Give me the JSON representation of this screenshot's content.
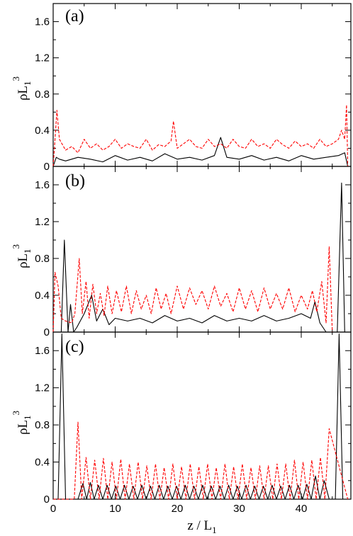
{
  "chart_data": [
    {
      "type": "line",
      "panel_label": "(a)",
      "ylabel": {
        "base": "ρL",
        "sub": "1",
        "sup": "3"
      },
      "xlim": [
        0,
        48
      ],
      "ylim": [
        0,
        1.8
      ],
      "yticks": [
        0,
        0.4,
        0.8,
        1.2,
        1.6
      ],
      "ytick_labels": [
        "0",
        "0.4",
        "0.8",
        "1.2",
        "1.6"
      ],
      "xticks": [
        0,
        10,
        20,
        30,
        40
      ],
      "show_xtick_labels": false,
      "series": [
        {
          "color": "#000000",
          "style": "solid",
          "x": [
            0,
            0.5,
            1,
            2,
            4,
            6,
            8,
            10,
            12,
            14,
            16,
            18,
            20,
            22,
            24,
            26,
            27,
            28,
            30,
            32,
            34,
            36,
            38,
            40,
            42,
            44,
            46,
            47,
            47.5
          ],
          "y": [
            0,
            0.1,
            0.08,
            0.06,
            0.1,
            0.08,
            0.05,
            0.12,
            0.07,
            0.1,
            0.06,
            0.14,
            0.08,
            0.1,
            0.07,
            0.12,
            0.32,
            0.1,
            0.08,
            0.12,
            0.07,
            0.1,
            0.06,
            0.12,
            0.08,
            0.1,
            0.12,
            0.15,
            0
          ]
        },
        {
          "color": "#ff0000",
          "style": "dashed",
          "x": [
            0,
            0.3,
            0.6,
            1,
            2,
            3,
            4,
            5,
            6,
            7,
            8,
            9,
            10,
            11,
            12,
            13,
            14,
            15,
            16,
            17,
            18,
            19,
            19.4,
            20,
            21,
            22,
            23,
            24,
            25,
            26,
            27,
            28,
            29,
            30,
            31,
            32,
            33,
            34,
            35,
            36,
            37,
            38,
            39,
            40,
            41,
            42,
            43,
            44,
            45,
            46,
            46.5,
            47,
            47.3,
            47.5
          ],
          "y": [
            0,
            0.3,
            0.62,
            0.3,
            0.18,
            0.22,
            0.15,
            0.3,
            0.2,
            0.25,
            0.18,
            0.22,
            0.3,
            0.2,
            0.25,
            0.22,
            0.2,
            0.3,
            0.18,
            0.24,
            0.22,
            0.28,
            0.5,
            0.2,
            0.25,
            0.3,
            0.22,
            0.2,
            0.3,
            0.22,
            0.25,
            0.2,
            0.3,
            0.22,
            0.2,
            0.3,
            0.22,
            0.25,
            0.2,
            0.3,
            0.24,
            0.2,
            0.28,
            0.22,
            0.25,
            0.2,
            0.3,
            0.22,
            0.25,
            0.3,
            0.4,
            0.3,
            0.68,
            0
          ]
        }
      ]
    },
    {
      "type": "line",
      "panel_label": "(b)",
      "ylabel": {
        "base": "ρL",
        "sub": "1",
        "sup": "3"
      },
      "xlim": [
        0,
        48
      ],
      "ylim": [
        0,
        1.8
      ],
      "yticks": [
        0,
        0.4,
        0.8,
        1.2,
        1.6
      ],
      "ytick_labels": [
        "0",
        "0.4",
        "0.8",
        "1.2",
        "1.6"
      ],
      "xticks": [
        0,
        10,
        20,
        30,
        40
      ],
      "show_xtick_labels": false,
      "series": [
        {
          "color": "#000000",
          "style": "solid",
          "x": [
            0,
            1.3,
            1.8,
            2.4,
            2.8,
            3.3,
            3.8,
            5,
            6.2,
            7,
            8,
            9,
            10,
            12,
            14,
            16,
            18,
            20,
            22,
            24,
            26,
            28,
            30,
            32,
            34,
            36,
            38,
            40,
            41.5,
            42.2,
            43,
            44,
            45,
            45.8,
            46.5,
            47,
            47.5
          ],
          "y": [
            0,
            0,
            1.0,
            0,
            0.3,
            0,
            0.05,
            0.2,
            0.4,
            0.12,
            0.25,
            0.08,
            0.15,
            0.12,
            0.15,
            0.1,
            0.18,
            0.12,
            0.15,
            0.1,
            0.18,
            0.12,
            0.15,
            0.12,
            0.18,
            0.12,
            0.15,
            0.2,
            0.15,
            0.33,
            0.1,
            0,
            0,
            0,
            1.62,
            0,
            0
          ]
        },
        {
          "color": "#ff0000",
          "style": "dashed",
          "x": [
            0,
            0.3,
            0.8,
            1.3,
            2,
            3,
            3.5,
            4.2,
            4.7,
            5.3,
            5.8,
            6.4,
            7,
            7.6,
            8.2,
            8.8,
            9.5,
            10.2,
            11,
            11.8,
            12.6,
            13.4,
            14.2,
            15,
            15.8,
            16.6,
            17.4,
            18.2,
            19,
            20,
            21,
            22,
            23,
            24,
            25,
            26,
            27,
            28,
            29,
            30,
            31,
            32,
            33,
            34,
            35,
            36,
            37,
            38,
            39,
            40,
            41,
            41.8,
            42.5,
            43.3,
            44,
            44.5,
            45,
            46,
            47.5
          ],
          "y": [
            0,
            0.65,
            0.5,
            0.15,
            0.12,
            0.1,
            0.2,
            0.8,
            0.2,
            0.55,
            0.15,
            0.52,
            0.2,
            0.42,
            0.18,
            0.5,
            0.2,
            0.45,
            0.22,
            0.5,
            0.2,
            0.45,
            0.25,
            0.4,
            0.2,
            0.48,
            0.25,
            0.42,
            0.2,
            0.5,
            0.25,
            0.48,
            0.3,
            0.45,
            0.25,
            0.5,
            0.28,
            0.42,
            0.22,
            0.48,
            0.25,
            0.45,
            0.22,
            0.48,
            0.25,
            0.42,
            0.25,
            0.48,
            0.22,
            0.4,
            0.25,
            0.45,
            0.22,
            0.55,
            0.1,
            0.93,
            0,
            0,
            0
          ]
        }
      ]
    },
    {
      "type": "line",
      "panel_label": "(c)",
      "ylabel": {
        "base": "ρL",
        "sub": "1",
        "sup": "3"
      },
      "xlabel": {
        "base": "z / L",
        "sub": "1"
      },
      "xlim": [
        0,
        48
      ],
      "ylim": [
        0,
        1.8
      ],
      "yticks": [
        0,
        0.4,
        0.8,
        1.2,
        1.6
      ],
      "ytick_labels": [
        "0",
        "0.4",
        "0.8",
        "1.2",
        "1.6"
      ],
      "xticks": [
        0,
        10,
        20,
        30,
        40
      ],
      "xtick_labels": [
        "0",
        "10",
        "20",
        "30",
        "40"
      ],
      "show_xtick_labels": true,
      "series": [
        {
          "color": "#000000",
          "style": "solid",
          "x": [
            0,
            0.8,
            1.4,
            2.0,
            3.0,
            4.0,
            4.8,
            5.4,
            6.0,
            6.6,
            7.3,
            8.0,
            8.7,
            9.4,
            10.1,
            10.8,
            11.5,
            12.2,
            12.9,
            13.6,
            14.3,
            15.0,
            15.7,
            16.4,
            17.1,
            17.8,
            18.5,
            19.2,
            19.9,
            20.6,
            21.3,
            22.0,
            22.7,
            23.4,
            24.1,
            24.8,
            25.5,
            26.2,
            26.9,
            27.6,
            28.3,
            29.0,
            29.7,
            30.4,
            31.1,
            31.8,
            32.5,
            33.2,
            33.9,
            34.6,
            35.3,
            36.0,
            36.7,
            37.4,
            38.1,
            38.8,
            39.5,
            40.2,
            40.9,
            41.6,
            42.3,
            43.0,
            43.7,
            44.5,
            45.5,
            46.1,
            46.7,
            47.5
          ],
          "y": [
            0,
            0,
            1.78,
            0,
            0,
            0,
            0.17,
            0,
            0.18,
            0,
            0.15,
            0,
            0.15,
            0,
            0.14,
            0,
            0.15,
            0,
            0.14,
            0,
            0.15,
            0,
            0.14,
            0,
            0.15,
            0,
            0.14,
            0,
            0.14,
            0,
            0.15,
            0,
            0.14,
            0,
            0.15,
            0,
            0.14,
            0,
            0.14,
            0,
            0.15,
            0,
            0.14,
            0,
            0.15,
            0,
            0.14,
            0,
            0.14,
            0,
            0.15,
            0,
            0.14,
            0,
            0.15,
            0,
            0.15,
            0,
            0.16,
            0,
            0.25,
            0,
            0.2,
            0,
            0,
            1.78,
            0,
            0
          ]
        },
        {
          "color": "#ff0000",
          "style": "dashed",
          "x": [
            0,
            3.4,
            4.0,
            4.6,
            5.3,
            6.0,
            6.7,
            7.4,
            8.1,
            8.8,
            9.5,
            10.2,
            10.9,
            11.6,
            12.3,
            13.0,
            13.7,
            14.4,
            15.1,
            15.8,
            16.5,
            17.2,
            17.9,
            18.6,
            19.3,
            20.0,
            20.7,
            21.4,
            22.1,
            22.8,
            23.5,
            24.2,
            24.9,
            25.6,
            26.3,
            27.0,
            27.7,
            28.4,
            29.1,
            29.8,
            30.5,
            31.2,
            31.9,
            32.6,
            33.3,
            34.0,
            34.7,
            35.4,
            36.1,
            36.8,
            37.5,
            38.2,
            38.9,
            39.6,
            40.3,
            41.0,
            41.7,
            42.4,
            43.1,
            43.8,
            44.5,
            47.5
          ],
          "y": [
            0,
            0,
            0.83,
            0,
            0.45,
            0,
            0.42,
            0,
            0.44,
            0,
            0.4,
            0,
            0.43,
            0,
            0.38,
            0,
            0.4,
            0,
            0.36,
            0,
            0.38,
            0,
            0.34,
            0,
            0.38,
            0,
            0.35,
            0,
            0.38,
            0,
            0.35,
            0,
            0.38,
            0,
            0.34,
            0,
            0.38,
            0,
            0.35,
            0,
            0.38,
            0,
            0.34,
            0,
            0.36,
            0,
            0.36,
            0,
            0.38,
            0,
            0.38,
            0,
            0.42,
            0,
            0.4,
            0,
            0.42,
            0,
            0.45,
            0,
            0.76,
            0
          ]
        }
      ]
    }
  ]
}
